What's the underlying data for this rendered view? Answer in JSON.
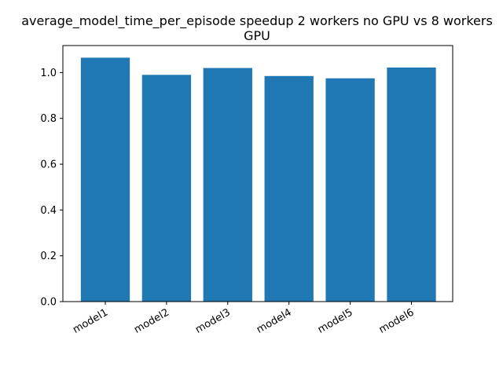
{
  "chart_data": {
    "type": "bar",
    "title_lines": [
      "average_model_time_per_episode speedup 2 workers no GPU vs 8 workers",
      "GPU"
    ],
    "categories": [
      "model1",
      "model2",
      "model3",
      "model4",
      "model5",
      "model6"
    ],
    "values": [
      1.065,
      0.99,
      1.02,
      0.985,
      0.975,
      1.022
    ],
    "yticks": [
      "0.0",
      "0.2",
      "0.4",
      "0.6",
      "0.8",
      "1.0"
    ],
    "ylim": [
      0,
      1.118
    ],
    "xlabel": "",
    "ylabel": "",
    "bar_color": "#1f77b4",
    "grid": false
  }
}
